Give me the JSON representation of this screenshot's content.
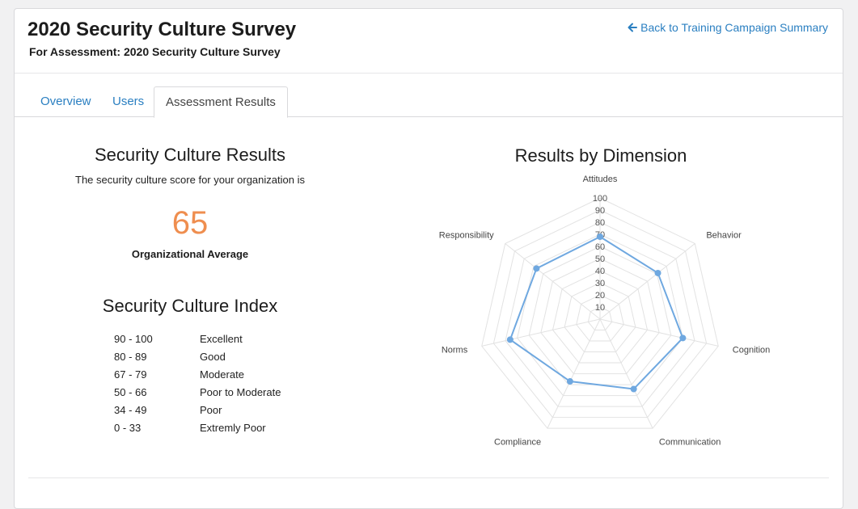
{
  "header": {
    "title": "2020 Security Culture Survey",
    "subtitle": "For Assessment: 2020 Security Culture Survey",
    "back_link": "Back to Training Campaign Summary"
  },
  "tabs": [
    {
      "label": "Overview",
      "active": false
    },
    {
      "label": "Users",
      "active": false
    },
    {
      "label": "Assessment Results",
      "active": true
    }
  ],
  "results": {
    "heading": "Security Culture Results",
    "description": "The security culture score for your organization is",
    "score": "65",
    "score_label": "Organizational Average"
  },
  "index": {
    "heading": "Security Culture Index",
    "rows": [
      {
        "range": "90 - 100",
        "rating": "Excellent"
      },
      {
        "range": "80 - 89",
        "rating": "Good"
      },
      {
        "range": "67 - 79",
        "rating": "Moderate"
      },
      {
        "range": "50 - 66",
        "rating": "Poor to Moderate"
      },
      {
        "range": "34 - 49",
        "rating": "Poor"
      },
      {
        "range": "0 - 33",
        "rating": "Extremly Poor"
      }
    ]
  },
  "colors": {
    "accent": "#2a7fc1",
    "score": "#ef8e4f",
    "series": "#6fa8e0"
  },
  "chart_data": {
    "type": "radar",
    "title": "Results by Dimension",
    "categories": [
      "Attitudes",
      "Behavior",
      "Cognition",
      "Communication",
      "Compliance",
      "Norms",
      "Responsibility"
    ],
    "ticks": [
      "10",
      "20",
      "30",
      "40",
      "50",
      "60",
      "70",
      "80",
      "90",
      "100"
    ],
    "range": [
      0,
      100
    ],
    "series": [
      {
        "values": [
          68,
          61,
          70,
          64,
          57,
          76,
          67
        ]
      }
    ]
  }
}
